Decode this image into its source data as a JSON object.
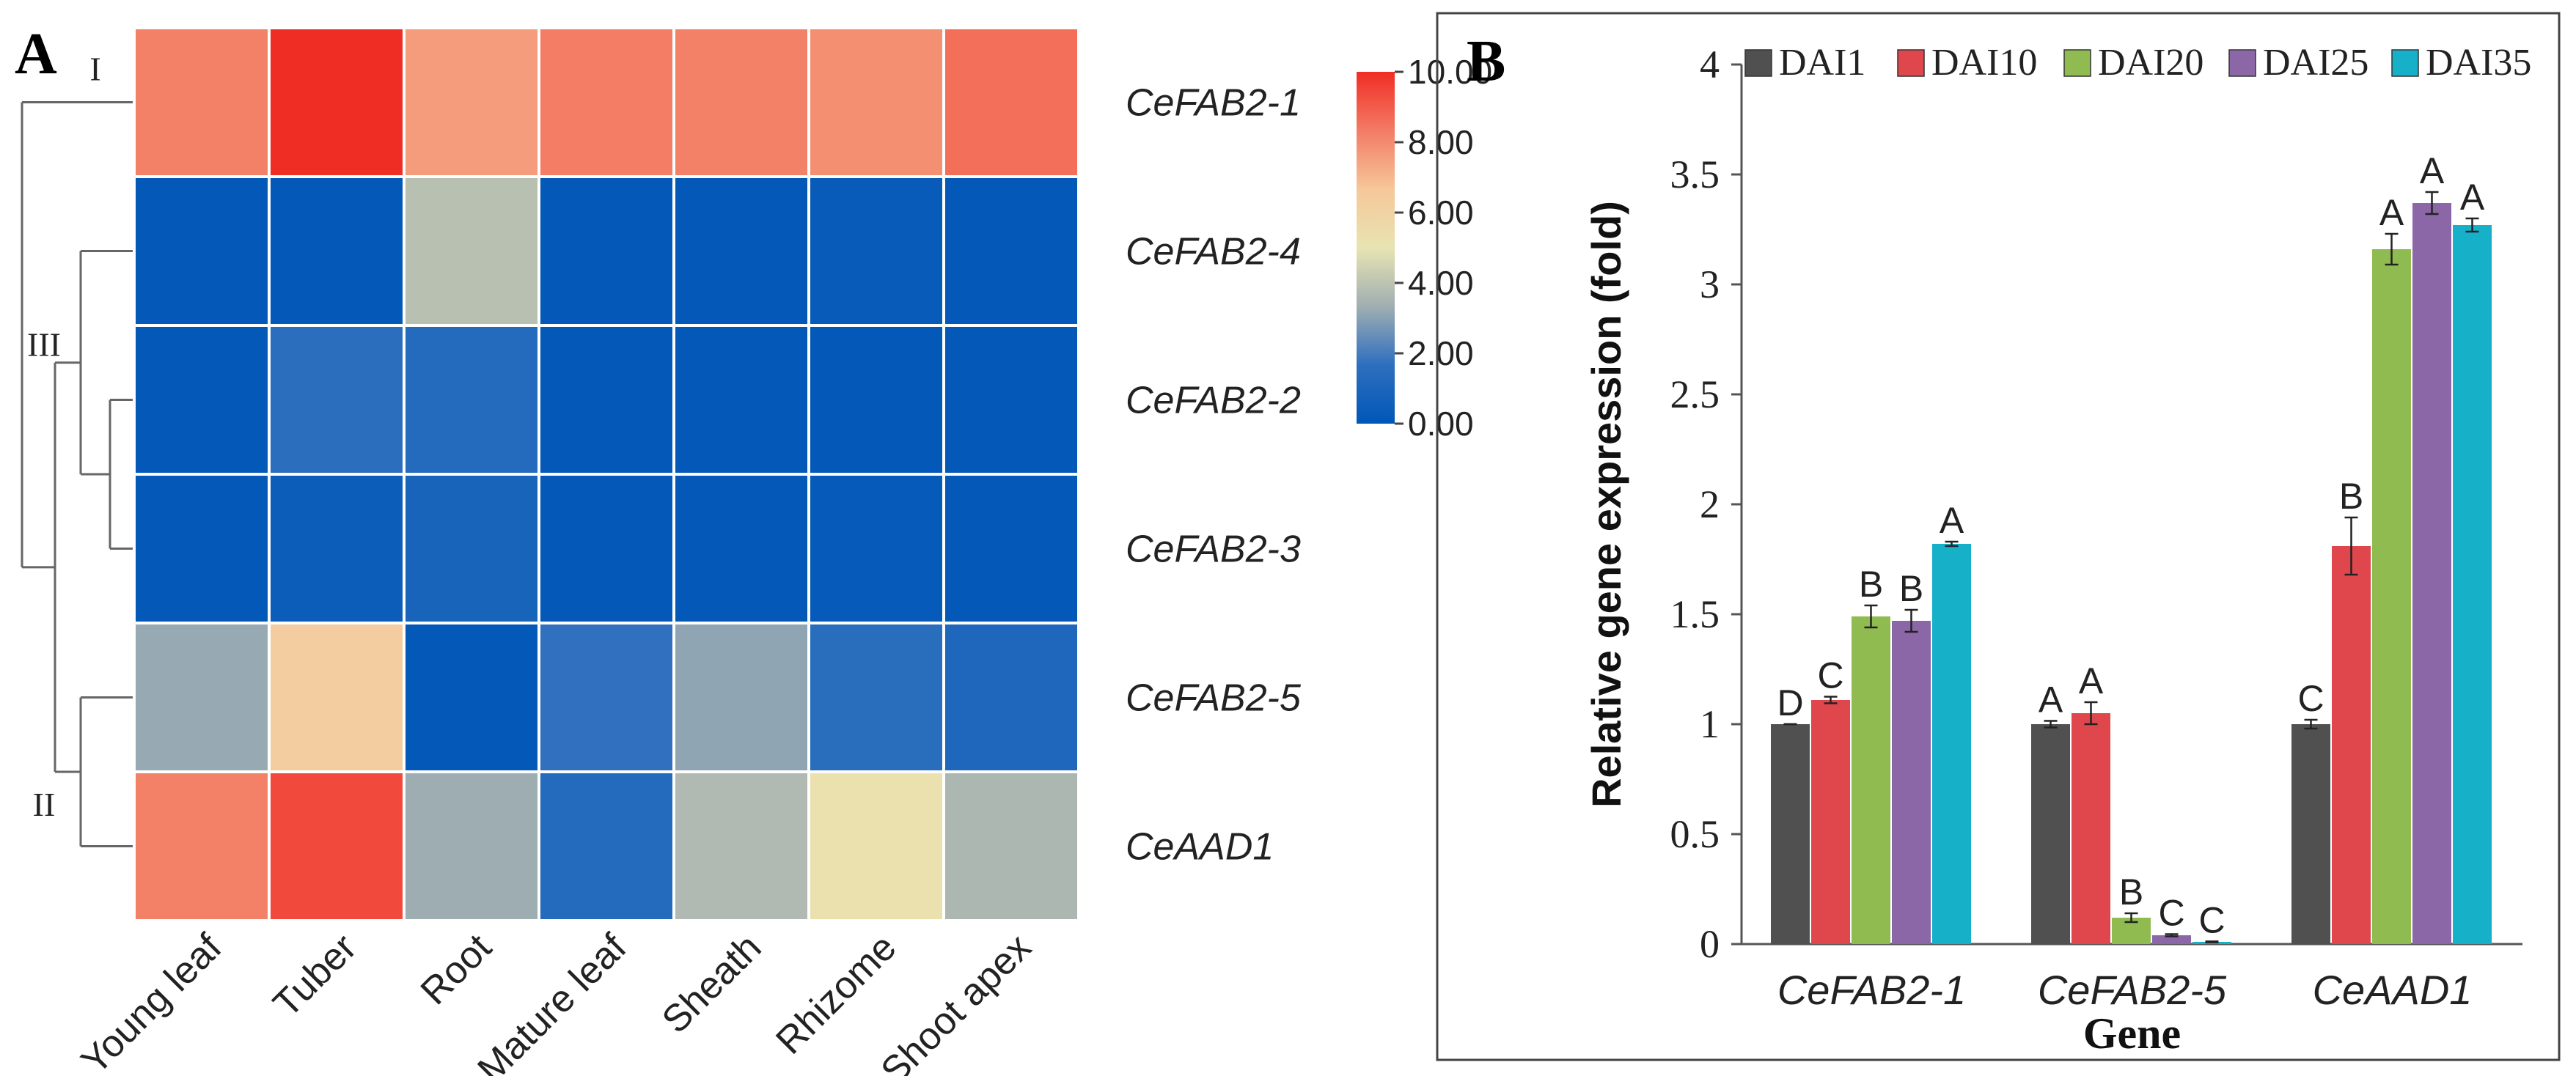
{
  "chart_data": [
    {
      "panel": "A",
      "type": "heatmap",
      "rows": [
        "CeFAB2-1",
        "CeFAB2-4",
        "CeFAB2-2",
        "CeFAB2-3",
        "CeFAB2-5",
        "CeAAD1"
      ],
      "columns": [
        "Young leaf",
        "Tuber",
        "Root",
        "Mature leaf",
        "Sheath",
        "Rhizome",
        "Shoot apex"
      ],
      "values": [
        [
          8.2,
          10.0,
          7.6,
          8.3,
          8.2,
          7.9,
          8.6
        ],
        [
          0.1,
          0.1,
          3.9,
          0.1,
          0.1,
          0.3,
          0.1
        ],
        [
          0.1,
          1.6,
          1.3,
          0.1,
          0.1,
          0.1,
          0.1
        ],
        [
          0.1,
          0.4,
          0.9,
          0.1,
          0.1,
          0.2,
          0.1
        ],
        [
          3.2,
          6.3,
          0.1,
          1.7,
          3.1,
          1.5,
          1.1
        ],
        [
          8.2,
          9.4,
          3.3,
          1.3,
          3.7,
          5.2,
          3.6
        ]
      ],
      "colorbar": {
        "min": 0,
        "max": 10,
        "ticks": [
          "10.00",
          "8.00",
          "6.00",
          "4.00",
          "2.00",
          "0.00"
        ],
        "colors": [
          "#0057b8",
          "#2e6fbe",
          "#a0aeb2",
          "#e8e4b2",
          "#f6c799",
          "#f37b64",
          "#f02d25"
        ]
      },
      "dendrogram_clusters": [
        "I",
        "III",
        "II"
      ]
    },
    {
      "panel": "B",
      "type": "bar",
      "categories": [
        "CeFAB2-1",
        "CeFAB2-5",
        "CeAAD1"
      ],
      "series": [
        {
          "name": "DAI1",
          "color": "#505050",
          "values": [
            1.0,
            1.0,
            1.0
          ],
          "errors": [
            0.0,
            0.015,
            0.02
          ],
          "letters": [
            "D",
            "A",
            "C"
          ]
        },
        {
          "name": "DAI10",
          "color": "#e0474c",
          "values": [
            1.11,
            1.05,
            1.81
          ],
          "errors": [
            0.015,
            0.05,
            0.13
          ],
          "letters": [
            "C",
            "A",
            "B"
          ]
        },
        {
          "name": "DAI20",
          "color": "#8fbb50",
          "values": [
            1.49,
            0.12,
            3.16
          ],
          "errors": [
            0.05,
            0.02,
            0.07
          ],
          "letters": [
            "B",
            "B",
            "A"
          ]
        },
        {
          "name": "DAI25",
          "color": "#8c67a8",
          "values": [
            1.47,
            0.04,
            3.37
          ],
          "errors": [
            0.05,
            0.005,
            0.05
          ],
          "letters": [
            "B",
            "C",
            "A"
          ]
        },
        {
          "name": "DAI35",
          "color": "#17b0c9",
          "values": [
            1.82,
            0.01,
            3.27
          ],
          "errors": [
            0.01,
            0.002,
            0.03
          ],
          "letters": [
            "A",
            "C",
            "A"
          ]
        }
      ],
      "ylabel": "Relative gene expression (fold)",
      "xlabel": "Gene",
      "ylim": [
        0,
        4
      ],
      "yticks": [
        "0",
        "0.5",
        "1",
        "1.5",
        "2",
        "2.5",
        "3",
        "3.5",
        "4"
      ],
      "legend": "top"
    }
  ]
}
